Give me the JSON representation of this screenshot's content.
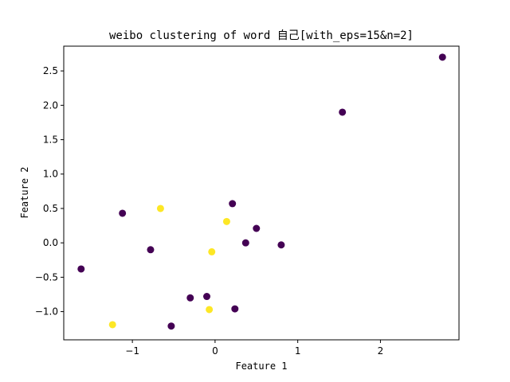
{
  "chart_data": {
    "type": "scatter",
    "title": "weibo clustering of word 自己[with_eps=15&n=2]",
    "xlabel": "Feature 1",
    "ylabel": "Feature 2",
    "xlim": [
      -1.83,
      2.95
    ],
    "ylim": [
      -1.41,
      2.86
    ],
    "xticks": [
      -1,
      0,
      1,
      2
    ],
    "xtick_labels": [
      "−1",
      "0",
      "1",
      "2"
    ],
    "yticks": [
      -1.0,
      -0.5,
      0.0,
      0.5,
      1.0,
      1.5,
      2.0,
      2.5
    ],
    "ytick_labels": [
      "−1.0",
      "−0.5",
      "0.0",
      "0.5",
      "1.0",
      "1.5",
      "2.0",
      "2.5"
    ],
    "grid": false,
    "cluster_colors": {
      "0": "#440154",
      "1": "#fde725"
    },
    "points": [
      {
        "x": 2.75,
        "y": 2.7,
        "cluster": 0
      },
      {
        "x": 1.54,
        "y": 1.9,
        "cluster": 0
      },
      {
        "x": -1.12,
        "y": 0.43,
        "cluster": 0
      },
      {
        "x": 0.21,
        "y": 0.57,
        "cluster": 0
      },
      {
        "x": 0.5,
        "y": 0.21,
        "cluster": 0
      },
      {
        "x": 0.37,
        "y": 0.0,
        "cluster": 0
      },
      {
        "x": 0.8,
        "y": -0.03,
        "cluster": 0
      },
      {
        "x": -0.78,
        "y": -0.1,
        "cluster": 0
      },
      {
        "x": -1.62,
        "y": -0.38,
        "cluster": 0
      },
      {
        "x": -0.3,
        "y": -0.8,
        "cluster": 0
      },
      {
        "x": -0.1,
        "y": -0.78,
        "cluster": 0
      },
      {
        "x": 0.24,
        "y": -0.96,
        "cluster": 0
      },
      {
        "x": -0.53,
        "y": -1.21,
        "cluster": 0
      },
      {
        "x": -0.66,
        "y": 0.5,
        "cluster": 1
      },
      {
        "x": 0.14,
        "y": 0.31,
        "cluster": 1
      },
      {
        "x": -0.04,
        "y": -0.13,
        "cluster": 1
      },
      {
        "x": -0.07,
        "y": -0.97,
        "cluster": 1
      },
      {
        "x": -1.24,
        "y": -1.19,
        "cluster": 1
      }
    ]
  }
}
